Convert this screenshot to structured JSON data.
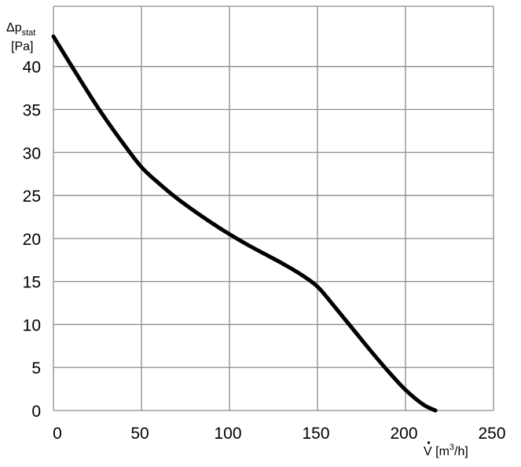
{
  "chart_data": {
    "type": "line",
    "xlabel": {
      "symbol": "V",
      "unit_open": " [m",
      "unit_sup": "3",
      "unit_close": "/h]"
    },
    "ylabel": {
      "symbol": "Δp",
      "subscript": "stat",
      "unit": "[Pa]"
    },
    "xlim": [
      0,
      250
    ],
    "ylim": [
      0,
      47
    ],
    "x_ticks": [
      0,
      50,
      100,
      150,
      200,
      250
    ],
    "y_ticks": [
      0,
      5,
      10,
      15,
      20,
      25,
      30,
      35,
      40
    ],
    "grid": true,
    "colors": {
      "grid": "#8c8c8c",
      "line": "#000000"
    },
    "series": [
      {
        "x": [
          0,
          12,
          25,
          38,
          50,
          60,
          70,
          80,
          90,
          100,
          110,
          120,
          130,
          140,
          150,
          160,
          170,
          180,
          190,
          200,
          210,
          217
        ],
        "y": [
          43.5,
          39.5,
          35.3,
          31.5,
          28.3,
          26.4,
          24.7,
          23.2,
          21.8,
          20.5,
          19.3,
          18.2,
          17.1,
          15.9,
          14.4,
          12.0,
          9.5,
          7.0,
          4.6,
          2.4,
          0.7,
          0
        ]
      }
    ]
  }
}
